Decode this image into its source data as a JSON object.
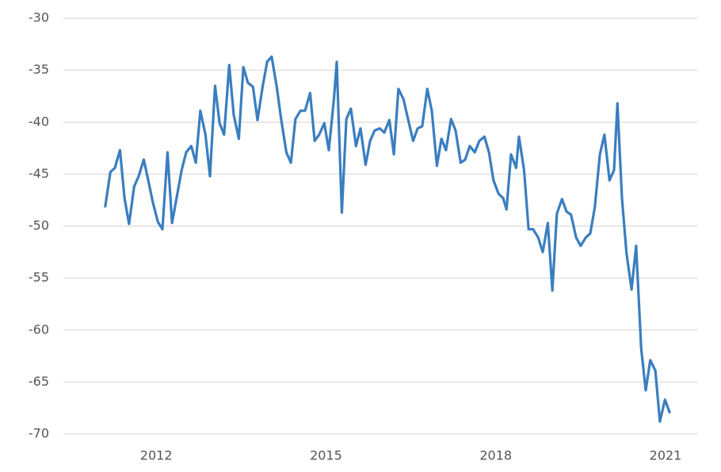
{
  "chart_data": {
    "type": "line",
    "x": [
      2011.1,
      2011.19,
      2011.27,
      2011.36,
      2011.44,
      2011.52,
      2011.61,
      2011.69,
      2011.78,
      2011.86,
      2011.94,
      2012.03,
      2012.11,
      2012.2,
      2012.28,
      2012.36,
      2012.45,
      2012.53,
      2012.62,
      2012.7,
      2012.78,
      2012.87,
      2012.95,
      2013.04,
      2013.12,
      2013.2,
      2013.29,
      2013.37,
      2013.46,
      2013.54,
      2013.62,
      2013.71,
      2013.79,
      2013.88,
      2013.96,
      2014.04,
      2014.13,
      2014.21,
      2014.3,
      2014.38,
      2014.46,
      2014.55,
      2014.63,
      2014.72,
      2014.8,
      2014.88,
      2014.97,
      2015.05,
      2015.14,
      2015.19,
      2015.28,
      2015.36,
      2015.44,
      2015.53,
      2015.61,
      2015.7,
      2015.78,
      2015.86,
      2015.95,
      2016.03,
      2016.12,
      2016.2,
      2016.28,
      2016.37,
      2016.45,
      2016.54,
      2016.62,
      2016.7,
      2016.79,
      2016.87,
      2016.96,
      2017.04,
      2017.12,
      2017.21,
      2017.29,
      2017.38,
      2017.46,
      2017.54,
      2017.63,
      2017.71,
      2017.8,
      2017.88,
      2017.96,
      2018.05,
      2018.13,
      2018.19,
      2018.27,
      2018.36,
      2018.41,
      2018.5,
      2018.58,
      2018.66,
      2018.75,
      2018.83,
      2018.92,
      2019.0,
      2019.08,
      2019.17,
      2019.25,
      2019.33,
      2019.42,
      2019.5,
      2019.59,
      2019.67,
      2019.75,
      2019.84,
      2019.92,
      2020.01,
      2020.09,
      2020.15,
      2020.23,
      2020.31,
      2020.4,
      2020.48,
      2020.57,
      2020.65,
      2020.73,
      2020.82,
      2020.9,
      2020.99,
      2021.07
    ],
    "values": [
      -48.1,
      -44.8,
      -44.4,
      -42.7,
      -47.3,
      -49.8,
      -46.2,
      -45.2,
      -43.6,
      -45.6,
      -47.7,
      -49.6,
      -50.3,
      -42.9,
      -49.7,
      -47.3,
      -44.6,
      -42.9,
      -42.3,
      -43.9,
      -38.9,
      -41.2,
      -45.2,
      -36.5,
      -40.1,
      -41.2,
      -34.5,
      -39.3,
      -41.6,
      -34.7,
      -36.2,
      -36.6,
      -39.8,
      -36.6,
      -34.2,
      -33.7,
      -36.6,
      -39.8,
      -42.9,
      -43.9,
      -39.7,
      -38.9,
      -38.9,
      -37.2,
      -41.8,
      -41.2,
      -40.1,
      -42.7,
      -37.8,
      -34.2,
      -48.7,
      -39.7,
      -38.7,
      -42.3,
      -40.6,
      -44.1,
      -41.8,
      -40.8,
      -40.6,
      -41.0,
      -39.8,
      -43.1,
      -36.8,
      -37.8,
      -39.7,
      -41.8,
      -40.6,
      -40.4,
      -36.8,
      -38.9,
      -44.2,
      -41.6,
      -42.7,
      -39.7,
      -40.8,
      -43.9,
      -43.6,
      -42.3,
      -42.9,
      -41.8,
      -41.4,
      -42.9,
      -45.6,
      -46.9,
      -47.3,
      -48.4,
      -43.1,
      -44.4,
      -41.4,
      -44.6,
      -50.3,
      -50.3,
      -51.1,
      -52.5,
      -49.7,
      -56.2,
      -48.8,
      -47.4,
      -48.6,
      -48.9,
      -51.1,
      -51.9,
      -51.1,
      -50.7,
      -48.2,
      -43.1,
      -41.2,
      -45.6,
      -44.6,
      -38.2,
      -47.3,
      -52.6,
      -56.1,
      -51.9,
      -61.8,
      -65.8,
      -62.9,
      -63.9,
      -68.8,
      -66.7,
      -67.9
    ],
    "color": "#3a7ebf",
    "xlim": [
      2010.43,
      2021.56
    ],
    "xticks": [
      2012,
      2015,
      2018,
      2021
    ],
    "ylim": [
      -70,
      -30
    ],
    "yticks": [
      -70,
      -65,
      -60,
      -55,
      -50,
      -45,
      -40,
      -35,
      -30
    ],
    "grid": true
  }
}
